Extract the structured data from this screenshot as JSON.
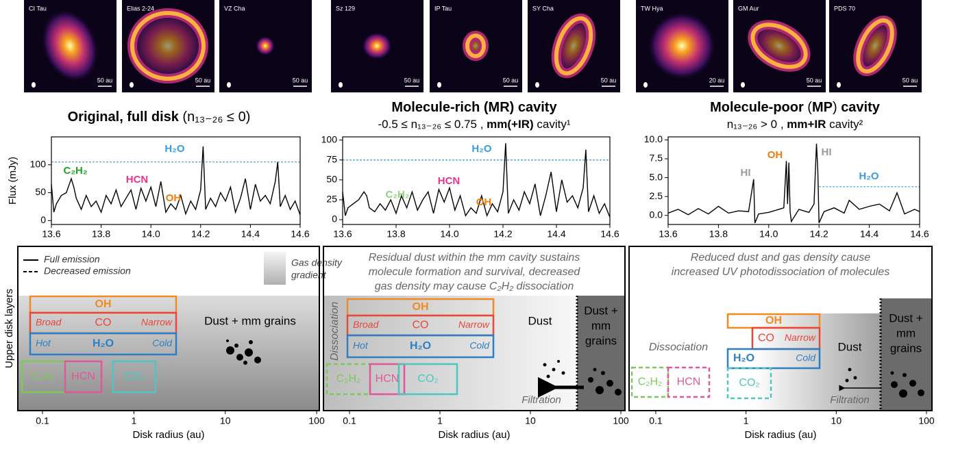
{
  "images": [
    {
      "label": "CI Tau",
      "scale": "50 au"
    },
    {
      "label": "Elias 2-24",
      "scale": "50 au"
    },
    {
      "label": "VZ Cha",
      "scale": "50 au"
    },
    {
      "label": "Sz 129",
      "scale": "50 au"
    },
    {
      "label": "IP Tau",
      "scale": "50 au"
    },
    {
      "label": "SY Cha",
      "scale": "50 au"
    },
    {
      "label": "TW Hya",
      "scale": "20 au"
    },
    {
      "label": "GM Aur",
      "scale": "50 au"
    },
    {
      "label": "PDS 70",
      "scale": "50 au"
    }
  ],
  "headings": [
    {
      "title": [
        {
          "text": "Original, full disk",
          "bold": true
        },
        {
          "text": " (n₁₃₋₂₆ ≤ 0)",
          "bold": false
        }
      ]
    },
    {
      "title": [
        {
          "text": "Molecule-rich (MR) cavity",
          "bold": true
        }
      ],
      "subtitle": [
        {
          "text": "-0.5 ≤ n₁₃₋₂₆ ≤ 0.75 , ",
          "bold": false
        },
        {
          "text": "mm(+IR)",
          "bold": true
        },
        {
          "text": " cavity¹",
          "bold": false
        }
      ]
    },
    {
      "title": [
        {
          "text": "Molecule-poor",
          "bold": true
        },
        {
          "text": " (",
          "bold": false
        },
        {
          "text": "MP",
          "bold": true
        },
        {
          "text": ") ",
          "bold": false
        },
        {
          "text": "cavity",
          "bold": true
        }
      ],
      "subtitle": [
        {
          "text": "n₁₃₋₂₆ > 0 , ",
          "bold": false
        },
        {
          "text": "mm+IR",
          "bold": true
        },
        {
          "text": " cavity²",
          "bold": false
        }
      ]
    }
  ],
  "chart_data": [
    {
      "type": "line",
      "ylabel": "Flux (mJy)",
      "color": "#000000",
      "xlim": [
        13.6,
        14.6
      ],
      "ylim": [
        -7,
        150
      ],
      "xticks": [
        13.6,
        13.8,
        {
          "value": 14.0,
          "label": "14.0"
        },
        14.2,
        14.4,
        14.6
      ],
      "yticks": [
        0,
        50,
        100
      ],
      "x": [
        13.6,
        13.61,
        13.62,
        13.64,
        13.66,
        13.68,
        13.69,
        13.7,
        13.72,
        13.74,
        13.76,
        13.78,
        13.8,
        13.82,
        13.84,
        13.86,
        13.88,
        13.9,
        13.92,
        13.94,
        13.96,
        13.98,
        14.0,
        14.02,
        14.04,
        14.06,
        14.08,
        14.1,
        14.12,
        14.14,
        14.16,
        14.18,
        14.2,
        14.21,
        14.22,
        14.24,
        14.26,
        14.28,
        14.3,
        14.32,
        14.34,
        14.36,
        14.38,
        14.4,
        14.42,
        14.44,
        14.46,
        14.48,
        14.5,
        14.51,
        14.52,
        14.54,
        14.56,
        14.58,
        14.6
      ],
      "values": [
        65,
        15,
        30,
        45,
        50,
        75,
        60,
        40,
        20,
        45,
        25,
        35,
        15,
        45,
        30,
        55,
        25,
        40,
        55,
        20,
        58,
        35,
        60,
        25,
        70,
        15,
        30,
        20,
        45,
        12,
        35,
        20,
        55,
        133,
        20,
        40,
        25,
        50,
        35,
        60,
        15,
        40,
        75,
        20,
        65,
        35,
        45,
        30,
        70,
        105,
        25,
        45,
        20,
        35,
        10
      ],
      "reference": {
        "value": 105,
        "from": 13.6,
        "color": "#3a9be0"
      },
      "annotations": [
        {
          "text": "H₂O",
          "color": "#3a9be0"
        },
        {
          "text": "C₂H₂",
          "color": "#22a322"
        },
        {
          "text": "HCN",
          "color": "#e8338f"
        },
        {
          "text": "OH",
          "color": "#f07c0a"
        }
      ]
    },
    {
      "type": "line",
      "color": "#000000",
      "xlim": [
        13.6,
        14.6
      ],
      "ylim": [
        -6,
        104
      ],
      "xticks": [
        13.6,
        13.8,
        {
          "value": 14.0,
          "label": "14.0"
        },
        14.2,
        14.4,
        14.6
      ],
      "yticks": [
        0,
        25,
        50,
        75,
        100
      ],
      "x": [
        13.6,
        13.61,
        13.62,
        13.64,
        13.66,
        13.68,
        13.69,
        13.7,
        13.72,
        13.74,
        13.76,
        13.78,
        13.8,
        13.82,
        13.84,
        13.86,
        13.88,
        13.9,
        13.92,
        13.94,
        13.96,
        13.98,
        14.0,
        14.02,
        14.04,
        14.06,
        14.08,
        14.1,
        14.12,
        14.14,
        14.16,
        14.18,
        14.2,
        14.21,
        14.22,
        14.24,
        14.26,
        14.28,
        14.3,
        14.32,
        14.34,
        14.36,
        14.38,
        14.4,
        14.42,
        14.44,
        14.46,
        14.48,
        14.5,
        14.51,
        14.52,
        14.54,
        14.56,
        14.58,
        14.6
      ],
      "values": [
        35,
        5,
        15,
        20,
        25,
        35,
        30,
        15,
        10,
        20,
        12,
        25,
        8,
        30,
        15,
        35,
        12,
        25,
        35,
        8,
        38,
        22,
        40,
        12,
        30,
        5,
        15,
        8,
        30,
        5,
        20,
        10,
        35,
        96,
        8,
        25,
        12,
        35,
        20,
        45,
        5,
        30,
        60,
        10,
        50,
        22,
        30,
        15,
        40,
        88,
        10,
        30,
        8,
        20,
        3
      ],
      "reference": {
        "value": 75,
        "from": 13.6,
        "color": "#3a9be0"
      },
      "annotations": [
        {
          "text": "H₂O",
          "color": "#3a9be0"
        },
        {
          "text": "C₂H₂",
          "color": "#8fd47a"
        },
        {
          "text": "HCN",
          "color": "#e8338f"
        },
        {
          "text": "OH",
          "color": "#f07c0a"
        }
      ]
    },
    {
      "type": "line",
      "color": "#000000",
      "xlim": [
        13.6,
        14.6
      ],
      "ylim": [
        -1.2,
        10.4
      ],
      "xticks": [
        13.6,
        13.8,
        {
          "value": 14.0,
          "label": "14.0"
        },
        14.2,
        14.4,
        14.6
      ],
      "yticks": [
        {
          "value": 0,
          "label": "0.0"
        },
        2.5,
        {
          "value": 5,
          "label": "5.0"
        },
        7.5,
        {
          "value": 10,
          "label": "10.0"
        }
      ],
      "x": [
        13.6,
        13.64,
        13.68,
        13.72,
        13.76,
        13.8,
        13.84,
        13.88,
        13.92,
        13.94,
        13.945,
        13.96,
        14.0,
        14.04,
        14.06,
        14.07,
        14.075,
        14.08,
        14.085,
        14.09,
        14.12,
        14.16,
        14.18,
        14.19,
        14.195,
        14.2,
        14.22,
        14.26,
        14.3,
        14.32,
        14.36,
        14.4,
        14.44,
        14.48,
        14.51,
        14.54,
        14.58,
        14.6
      ],
      "values": [
        0.3,
        0.8,
        0.1,
        0.9,
        0.2,
        1.2,
        0.3,
        0.6,
        0.5,
        4.8,
        -1.0,
        0.2,
        0.4,
        0.8,
        1.0,
        7.2,
        1.5,
        7.0,
        0.5,
        -0.8,
        0.8,
        0.4,
        1.5,
        9.5,
        6.0,
        -1.0,
        0.5,
        1.0,
        0.3,
        2.0,
        0.8,
        1.2,
        1.5,
        0.6,
        3.0,
        0.2,
        0.8,
        0.5
      ],
      "reference": {
        "value": 3.8,
        "from": 14.2,
        "color": "#3a9be0"
      },
      "annotations": [
        {
          "text": "HI",
          "color": "#999999"
        },
        {
          "text": "OH",
          "color": "#f07c0a"
        },
        {
          "text": "HI",
          "color": "#999999"
        },
        {
          "text": "H₂O",
          "color": "#3a9be0"
        }
      ]
    }
  ],
  "schematics": [
    {
      "xlabel": "Disk radius (au)",
      "ylabel": "Upper disk layers",
      "log": true,
      "xlim": [
        0.0537,
        107
      ],
      "xticks": [
        0.1,
        1,
        10,
        100
      ],
      "legend": [
        {
          "text": "Full emission",
          "dashed": false
        },
        {
          "text": "Decreased emission",
          "dashed": true
        }
      ],
      "gradient_label": [
        "Gas density",
        "gradient"
      ],
      "boxes": [
        {
          "label": "OH",
          "color": "#f08a24",
          "dashed": false
        },
        {
          "label": "CO",
          "color": "#e8473a",
          "dashed": false,
          "left": "Broad",
          "right": "Narrow"
        },
        {
          "label": "H₂O",
          "color": "#2b7fc4",
          "dashed": false,
          "left": "Hot",
          "right": "Cold"
        },
        {
          "label": "C₂H₂",
          "color": "#7cc85a",
          "dashed": false
        },
        {
          "label": "HCN",
          "color": "#e0579c",
          "dashed": false
        },
        {
          "label": "CO₂",
          "color": "#4cc7c0",
          "dashed": false
        }
      ],
      "labels": [
        {
          "lines": [
            "Dust + mm grains"
          ],
          "italic": false
        }
      ]
    },
    {
      "xlabel": "Disk radius (au)",
      "log": true,
      "xlim": [
        0.0515,
        111
      ],
      "xticks": [
        0.1,
        1,
        10,
        100
      ],
      "caption": [
        "Residual dust within the mm cavity sustains",
        "molecule formation and survival, decreased",
        "gas density may cause C₂H₂ dissociation"
      ],
      "boxes": [
        {
          "label": "OH",
          "color": "#f08a24",
          "dashed": false
        },
        {
          "label": "CO",
          "color": "#e8473a",
          "dashed": false,
          "left": "Broad",
          "right": "Narrow"
        },
        {
          "label": "H₂O",
          "color": "#2b7fc4",
          "dashed": false,
          "left": "Hot",
          "right": "Cold"
        },
        {
          "label": "C₂H₂",
          "color": "#7cc85a",
          "dashed": true
        },
        {
          "label": "HCN",
          "color": "#e0579c",
          "dashed": false
        },
        {
          "label": "CO₂",
          "color": "#4cc7c0",
          "dashed": false
        }
      ],
      "labels": [
        {
          "lines": [
            "Dissociation"
          ],
          "italic": true
        },
        {
          "lines": [
            "Dust"
          ],
          "italic": false
        },
        {
          "lines": [
            "Dust +",
            "mm",
            "grains"
          ],
          "italic": false
        },
        {
          "lines": [
            "Filtration"
          ],
          "italic": true
        }
      ]
    },
    {
      "xlabel": "Disk radius (au)",
      "log": true,
      "xlim": [
        0.0506,
        115
      ],
      "xticks": [
        0.1,
        1,
        10,
        100
      ],
      "caption": [
        "Reduced dust and gas density cause",
        "increased UV photodissociation of molecules"
      ],
      "boxes": [
        {
          "label": "OH",
          "color": "#f08a24",
          "dashed": false
        },
        {
          "label": "CO",
          "color": "#e8473a",
          "dashed": false,
          "right": "Narrow"
        },
        {
          "label": "H₂O",
          "color": "#2b7fc4",
          "dashed": false,
          "right": "Cold"
        },
        {
          "label": "C₂H₂",
          "color": "#7cc85a",
          "dashed": true
        },
        {
          "label": "HCN",
          "color": "#e0579c",
          "dashed": true
        },
        {
          "label": "CO₂",
          "color": "#4cc7c0",
          "dashed": true
        }
      ],
      "labels": [
        {
          "lines": [
            "Dissociation"
          ],
          "italic": true
        },
        {
          "lines": [
            "Dust"
          ],
          "italic": false
        },
        {
          "lines": [
            "Dust +",
            "mm",
            "grains"
          ],
          "italic": false
        },
        {
          "lines": [
            "Filtration"
          ],
          "italic": true
        }
      ]
    }
  ]
}
